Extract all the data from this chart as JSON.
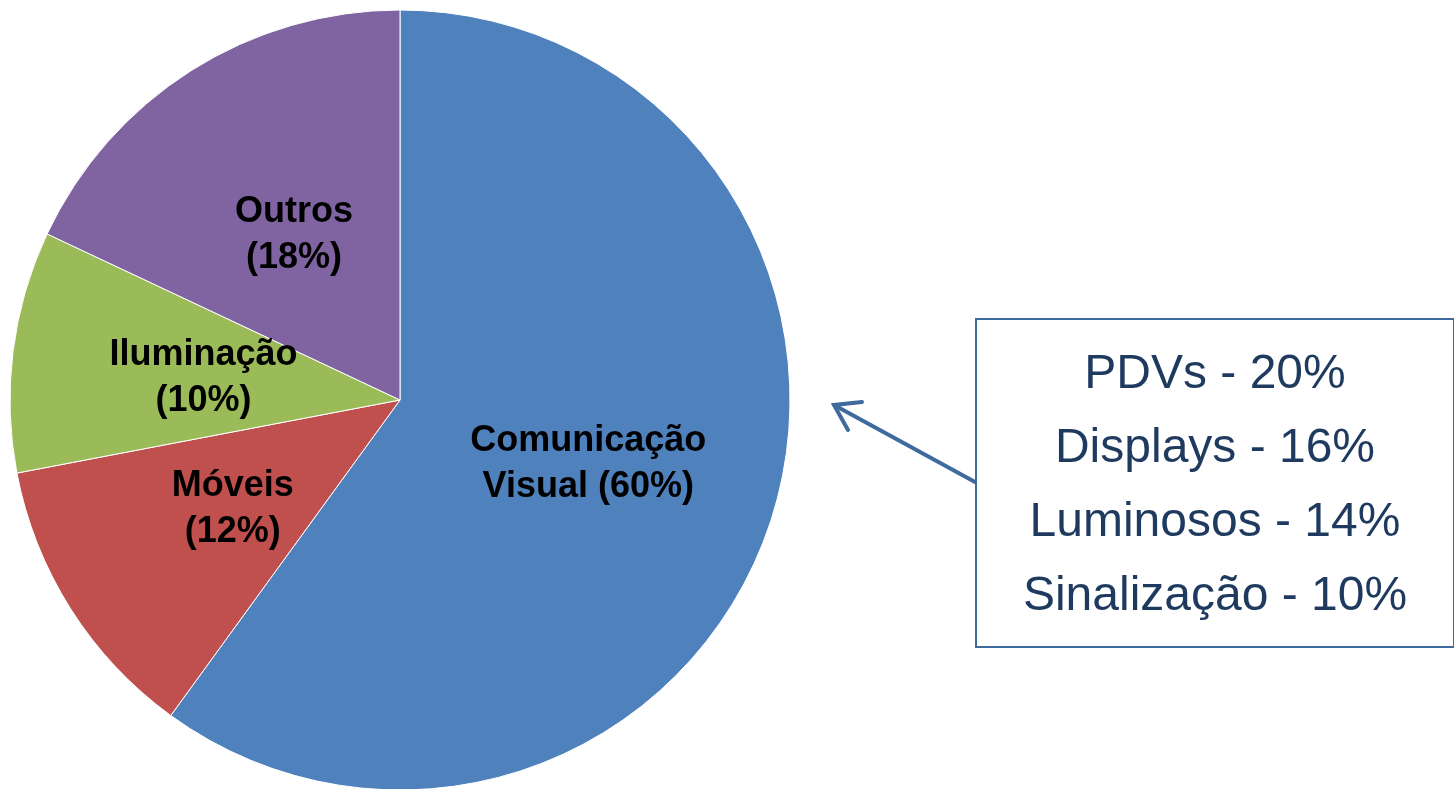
{
  "chart_data": {
    "type": "pie",
    "categories": [
      "Comunicação Visual",
      "Móveis",
      "Iluminação",
      "Outros"
    ],
    "values": [
      60,
      12,
      10,
      18
    ],
    "colors": [
      "#4f81bd",
      "#c0504d",
      "#9bbb59",
      "#8064a2"
    ],
    "value_labels": [
      "(60%)",
      "(12%)",
      "(10%)",
      "(18%)"
    ],
    "annotations": [
      "PDVs - 20%",
      "Displays - 16%",
      "Luminosos - 14%",
      "Sinalização - 10%"
    ]
  }
}
